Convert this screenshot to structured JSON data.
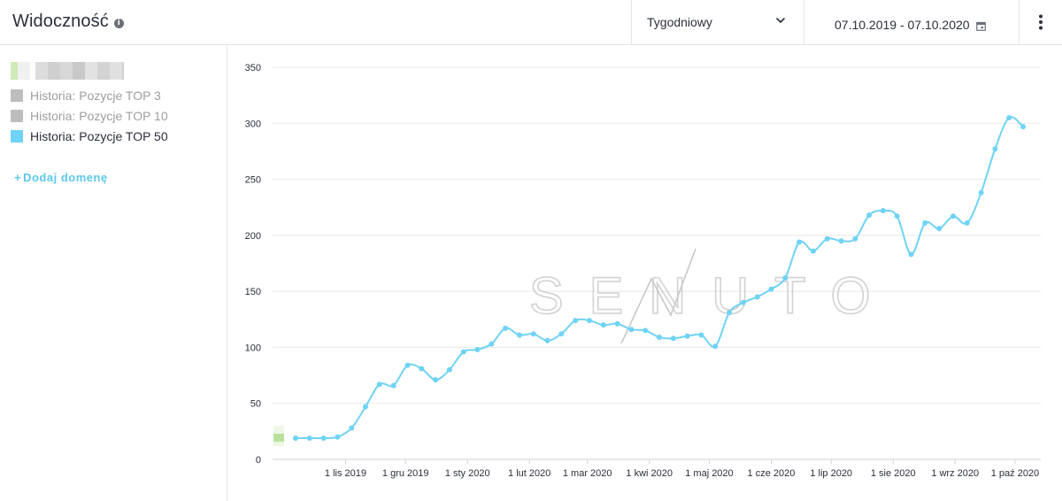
{
  "header": {
    "title": "Widoczność",
    "period_label": "Tygodniowy",
    "date_range": "07.10.2019 - 07.10.2020"
  },
  "sidebar": {
    "legend": [
      {
        "label": "Historia: Pozycje TOP 3",
        "color": "#bdbdbd",
        "active": false
      },
      {
        "label": "Historia: Pozycje TOP 10",
        "color": "#bdbdbd",
        "active": false
      },
      {
        "label": "Historia: Pozycje TOP 50",
        "color": "#6fd3f5",
        "active": true
      }
    ],
    "add_domain_label": "Dodaj domenę"
  },
  "watermark": "SENUTO",
  "colors": {
    "series": "#6fd3f5",
    "grid": "#e6e8eb",
    "text": "#2b2f3a",
    "muted": "#9e9e9e",
    "accent": "#5bc8ea"
  },
  "chart_data": {
    "type": "line",
    "ylim": [
      0,
      350
    ],
    "yticks": [
      0,
      50,
      100,
      150,
      200,
      250,
      300,
      350
    ],
    "x_ticks": [
      {
        "label": "1 lis 2019",
        "date": "2019-11-01"
      },
      {
        "label": "1 gru 2019",
        "date": "2019-12-01"
      },
      {
        "label": "1 sty 2020",
        "date": "2020-01-01"
      },
      {
        "label": "1 lut 2020",
        "date": "2020-02-01"
      },
      {
        "label": "1 mar 2020",
        "date": "2020-03-01"
      },
      {
        "label": "1 kwi 2020",
        "date": "2020-04-01"
      },
      {
        "label": "1 maj 2020",
        "date": "2020-05-01"
      },
      {
        "label": "1 cze 2020",
        "date": "2020-06-01"
      },
      {
        "label": "1 lip 2020",
        "date": "2020-07-01"
      },
      {
        "label": "1 sie 2020",
        "date": "2020-08-01"
      },
      {
        "label": "1 wrz 2020",
        "date": "2020-09-01"
      },
      {
        "label": "1 paź 2020",
        "date": "2020-10-01"
      }
    ],
    "grid": true,
    "series": [
      {
        "name": "Historia: Pozycje TOP 50",
        "color": "#6fd3f5",
        "points": [
          {
            "x": "2019-10-07",
            "y": 19
          },
          {
            "x": "2019-10-14",
            "y": 19
          },
          {
            "x": "2019-10-21",
            "y": 19
          },
          {
            "x": "2019-10-28",
            "y": 20
          },
          {
            "x": "2019-11-04",
            "y": 28
          },
          {
            "x": "2019-11-11",
            "y": 47
          },
          {
            "x": "2019-11-18",
            "y": 67
          },
          {
            "x": "2019-11-25",
            "y": 66
          },
          {
            "x": "2019-12-02",
            "y": 84
          },
          {
            "x": "2019-12-09",
            "y": 81
          },
          {
            "x": "2019-12-16",
            "y": 71
          },
          {
            "x": "2019-12-23",
            "y": 80
          },
          {
            "x": "2019-12-30",
            "y": 96
          },
          {
            "x": "2020-01-06",
            "y": 98
          },
          {
            "x": "2020-01-13",
            "y": 103
          },
          {
            "x": "2020-01-20",
            "y": 117
          },
          {
            "x": "2020-01-27",
            "y": 111
          },
          {
            "x": "2020-02-03",
            "y": 112
          },
          {
            "x": "2020-02-10",
            "y": 106
          },
          {
            "x": "2020-02-17",
            "y": 112
          },
          {
            "x": "2020-02-24",
            "y": 124
          },
          {
            "x": "2020-03-02",
            "y": 124
          },
          {
            "x": "2020-03-09",
            "y": 120
          },
          {
            "x": "2020-03-16",
            "y": 121
          },
          {
            "x": "2020-03-23",
            "y": 116
          },
          {
            "x": "2020-03-30",
            "y": 115
          },
          {
            "x": "2020-04-06",
            "y": 109
          },
          {
            "x": "2020-04-13",
            "y": 108
          },
          {
            "x": "2020-04-20",
            "y": 110
          },
          {
            "x": "2020-04-27",
            "y": 111
          },
          {
            "x": "2020-05-04",
            "y": 101
          },
          {
            "x": "2020-05-11",
            "y": 131
          },
          {
            "x": "2020-05-18",
            "y": 140
          },
          {
            "x": "2020-05-25",
            "y": 145
          },
          {
            "x": "2020-06-01",
            "y": 152
          },
          {
            "x": "2020-06-08",
            "y": 162
          },
          {
            "x": "2020-06-15",
            "y": 194
          },
          {
            "x": "2020-06-22",
            "y": 186
          },
          {
            "x": "2020-06-29",
            "y": 197
          },
          {
            "x": "2020-07-06",
            "y": 195
          },
          {
            "x": "2020-07-13",
            "y": 197
          },
          {
            "x": "2020-07-20",
            "y": 218
          },
          {
            "x": "2020-07-27",
            "y": 222
          },
          {
            "x": "2020-08-03",
            "y": 217
          },
          {
            "x": "2020-08-10",
            "y": 183
          },
          {
            "x": "2020-08-17",
            "y": 211
          },
          {
            "x": "2020-08-24",
            "y": 206
          },
          {
            "x": "2020-08-31",
            "y": 217
          },
          {
            "x": "2020-09-07",
            "y": 211
          },
          {
            "x": "2020-09-14",
            "y": 238
          },
          {
            "x": "2020-09-21",
            "y": 277
          },
          {
            "x": "2020-09-28",
            "y": 305
          },
          {
            "x": "2020-10-05",
            "y": 297
          }
        ]
      }
    ]
  }
}
